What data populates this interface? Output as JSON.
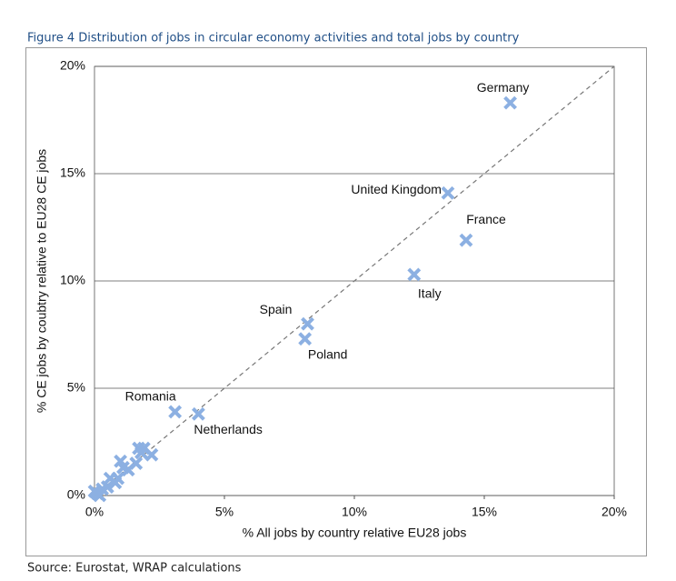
{
  "chart_data": {
    "type": "scatter",
    "title": "Figure 4 Distribution of jobs in circular economy activities and total jobs by country",
    "x_label": "% All jobs by country relative EU28 jobs",
    "y_label": "% CE jobs by coubtry relative to  EU28 CE jobs",
    "source": "Source: Eurostat, WRAP calculations",
    "xlim": [
      0,
      20
    ],
    "ylim": [
      0,
      20
    ],
    "xticks": [
      {
        "value": 0,
        "label": "0%"
      },
      {
        "value": 5,
        "label": "5%"
      },
      {
        "value": 10,
        "label": "10%"
      },
      {
        "value": 15,
        "label": "15%"
      },
      {
        "value": 20,
        "label": "20%"
      }
    ],
    "yticks": [
      {
        "value": 0,
        "label": "0%"
      },
      {
        "value": 5,
        "label": "5%"
      },
      {
        "value": 10,
        "label": "10%"
      },
      {
        "value": 15,
        "label": "15%"
      },
      {
        "value": 20,
        "label": "20%"
      }
    ],
    "grid": true,
    "color": "#8cb0e2",
    "x": [
      16.0,
      13.6,
      14.3,
      12.3,
      8.2,
      8.1,
      3.1,
      4.0,
      1.7,
      1.9,
      1.8,
      2.2,
      1.6,
      1.0,
      1.3,
      1.1,
      0.9,
      0.6,
      0.8,
      0.5,
      0.3,
      0.1,
      0.0,
      0.2
    ],
    "values": [
      18.3,
      14.1,
      11.9,
      10.3,
      8.0,
      7.3,
      3.9,
      3.8,
      2.2,
      2.2,
      2.0,
      1.9,
      1.5,
      1.6,
      1.2,
      1.3,
      0.8,
      0.8,
      0.6,
      0.4,
      0.3,
      0.1,
      0.2,
      0.0
    ],
    "labels": [
      "Germany",
      "United Kingdom",
      "France",
      "Italy",
      "Spain",
      "Poland",
      "Romania",
      "Netherlands",
      null,
      null,
      null,
      null,
      null,
      null,
      null,
      null,
      null,
      null,
      null,
      null,
      null,
      null,
      null,
      null
    ]
  }
}
